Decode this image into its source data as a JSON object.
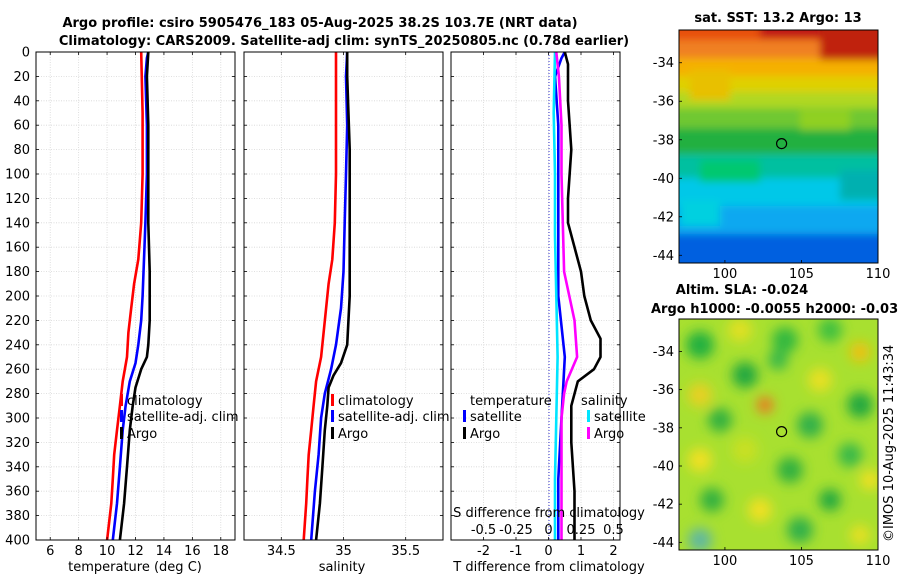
{
  "header": {
    "line1": "Argo profile: csiro 5905476_183 05-Aug-2025 38.2S 103.7E (NRT data)",
    "line2": "Climatology: CARS2009. Satellite-adj clim: synTS_20250805.nc (0.78d earlier)"
  },
  "watermark": "©IMOS 10-Aug-2025 11:43:34",
  "colors": {
    "climatology": "#ff0000",
    "satellite": "#0000ff",
    "argo": "#000000",
    "sat_salinity": "#00e5ff",
    "argo_salinity": "#ff00ff"
  },
  "chart_data": [
    {
      "type": "line",
      "id": "temperature",
      "xlabel": "temperature (deg C)",
      "ylabel": "",
      "xlim": [
        5,
        19
      ],
      "ylim": [
        400,
        0
      ],
      "xticks": [
        6,
        8,
        10,
        12,
        14,
        16,
        18
      ],
      "yticks": [
        0,
        20,
        40,
        60,
        80,
        100,
        120,
        140,
        160,
        180,
        200,
        220,
        240,
        260,
        280,
        300,
        320,
        340,
        360,
        380,
        400
      ],
      "grid": true,
      "legend": [
        "climatology",
        "satellite-adj. clim",
        "Argo"
      ],
      "legend_position": "lower-middle",
      "series": [
        {
          "name": "climatology",
          "color": "#ff0000",
          "depth": [
            0,
            50,
            100,
            140,
            170,
            190,
            210,
            230,
            250,
            270,
            290,
            310,
            330,
            350,
            370,
            390,
            400
          ],
          "values": [
            12.4,
            12.5,
            12.5,
            12.4,
            12.2,
            11.9,
            11.7,
            11.5,
            11.4,
            11.1,
            10.9,
            10.7,
            10.5,
            10.4,
            10.3,
            10.1,
            10.0
          ]
        },
        {
          "name": "satellite-adj. clim",
          "color": "#0000ff",
          "depth": [
            0,
            5,
            20,
            60,
            100,
            140,
            170,
            200,
            220,
            240,
            255,
            270,
            290,
            310,
            340,
            370,
            400
          ],
          "values": [
            12.9,
            12.8,
            12.7,
            12.8,
            12.8,
            12.7,
            12.6,
            12.5,
            12.4,
            12.2,
            12.0,
            11.6,
            11.3,
            11.1,
            10.9,
            10.7,
            10.4
          ]
        },
        {
          "name": "Argo",
          "color": "#000000",
          "depth": [
            0,
            20,
            60,
            100,
            140,
            180,
            220,
            240,
            250,
            260,
            275,
            290,
            310,
            340,
            370,
            400
          ],
          "values": [
            12.9,
            12.8,
            12.9,
            12.9,
            12.9,
            13.0,
            13.0,
            12.9,
            12.8,
            12.4,
            12.0,
            11.8,
            11.6,
            11.4,
            11.2,
            10.9
          ]
        }
      ]
    },
    {
      "type": "line",
      "id": "salinity",
      "xlabel": "salinity",
      "xlim": [
        34.2,
        35.8
      ],
      "ylim": [
        400,
        0
      ],
      "xticks": [
        34.5,
        35,
        35.5
      ],
      "xticklabels": [
        "34.5",
        "35",
        "35.5"
      ],
      "grid": true,
      "legend": [
        "climatology",
        "satellite-adj. clim",
        "Argo"
      ],
      "legend_position": "lower-middle",
      "series": [
        {
          "name": "climatology",
          "color": "#ff0000",
          "depth": [
            0,
            50,
            100,
            140,
            170,
            190,
            210,
            230,
            250,
            270,
            290,
            310,
            330,
            350,
            370,
            400
          ],
          "values": [
            34.94,
            34.94,
            34.94,
            34.93,
            34.91,
            34.88,
            34.86,
            34.84,
            34.82,
            34.78,
            34.76,
            34.74,
            34.72,
            34.71,
            34.7,
            34.68
          ]
        },
        {
          "name": "satellite-adj. clim",
          "color": "#0000ff",
          "depth": [
            0,
            20,
            60,
            100,
            140,
            180,
            210,
            240,
            260,
            280,
            300,
            330,
            360,
            400
          ],
          "values": [
            35.03,
            35.02,
            35.03,
            35.02,
            35.01,
            35.0,
            34.98,
            34.94,
            34.9,
            34.85,
            34.82,
            34.8,
            34.77,
            34.74
          ]
        },
        {
          "name": "Argo",
          "color": "#000000",
          "depth": [
            0,
            20,
            80,
            120,
            160,
            200,
            240,
            255,
            265,
            275,
            290,
            310,
            340,
            370,
            400
          ],
          "values": [
            35.03,
            35.03,
            35.05,
            35.05,
            35.05,
            35.05,
            35.03,
            34.98,
            34.92,
            34.88,
            34.87,
            34.85,
            34.83,
            34.81,
            34.78
          ]
        }
      ]
    },
    {
      "type": "line",
      "id": "difference",
      "xlabel": "T difference from climatology",
      "xlabel_top": "S difference from climatology",
      "xlim": [
        -3,
        2.2
      ],
      "ylim": [
        400,
        0
      ],
      "xticks": [
        -2,
        -1,
        0,
        1,
        2
      ],
      "xticklabels": [
        "-2",
        "-1",
        "0",
        "1",
        "2"
      ],
      "xticks_top": [
        -0.5,
        -0.25,
        0,
        0.25,
        0.5
      ],
      "xticklabels_top": [
        "-0.5",
        "-0.25",
        "0",
        "0.25",
        "0.5"
      ],
      "grid": true,
      "legend_left_title": "temperature",
      "legend_left": [
        "satellite",
        "Argo"
      ],
      "legend_right_title": "salinity",
      "legend_right": [
        "satellite",
        "Argo"
      ],
      "series": [
        {
          "name": "temperature satellite",
          "color": "#0000ff",
          "depth": [
            0,
            5,
            20,
            60,
            100,
            150,
            200,
            250,
            300,
            350,
            400
          ],
          "values": [
            0.5,
            0.4,
            0.2,
            0.3,
            0.3,
            0.3,
            0.3,
            0.5,
            0.4,
            0.3,
            0.3
          ]
        },
        {
          "name": "temperature Argo",
          "color": "#000000",
          "depth": [
            0,
            10,
            40,
            80,
            120,
            140,
            160,
            180,
            200,
            220,
            235,
            250,
            260,
            270,
            290,
            320,
            360,
            400
          ],
          "values": [
            0.5,
            0.6,
            0.6,
            0.7,
            0.6,
            0.6,
            0.8,
            1.0,
            1.1,
            1.3,
            1.6,
            1.6,
            1.4,
            0.9,
            0.7,
            0.7,
            0.8,
            0.8
          ]
        },
        {
          "name": "salinity satellite",
          "color": "#00e5ff",
          "depth": [
            0,
            50,
            100,
            150,
            200,
            250,
            300,
            350,
            400
          ],
          "values": [
            0.05,
            0.04,
            0.05,
            0.05,
            0.06,
            0.07,
            0.06,
            0.05,
            0.05
          ]
        },
        {
          "name": "salinity Argo",
          "color": "#ff00ff",
          "depth": [
            0,
            20,
            60,
            100,
            140,
            180,
            200,
            220,
            250,
            270,
            280,
            300,
            340,
            400
          ],
          "values": [
            0.06,
            0.08,
            0.1,
            0.1,
            0.11,
            0.12,
            0.16,
            0.2,
            0.22,
            0.14,
            0.12,
            0.1,
            0.1,
            0.1
          ]
        }
      ]
    },
    {
      "type": "heatmap",
      "id": "sst-map",
      "title": "sat. SST: 13.2 Argo: 13",
      "xlim": [
        97,
        110
      ],
      "ylim": [
        -44.4,
        -32.3
      ],
      "xticks": [
        100,
        105,
        110
      ],
      "yticks": [
        -34,
        -36,
        -38,
        -40,
        -42,
        -44
      ],
      "argo_lon": 103.7,
      "argo_lat": -38.2
    },
    {
      "type": "heatmap",
      "id": "sla-map",
      "title": "Altim. SLA: -0.024",
      "subtitle": "Argo h1000: -0.0055 h2000: -0.03",
      "xlim": [
        97,
        110
      ],
      "ylim": [
        -44.4,
        -32.3
      ],
      "xticks": [
        100,
        105,
        110
      ],
      "yticks": [
        -34,
        -36,
        -38,
        -40,
        -42,
        -44
      ],
      "argo_lon": 103.7,
      "argo_lat": -38.2
    }
  ]
}
